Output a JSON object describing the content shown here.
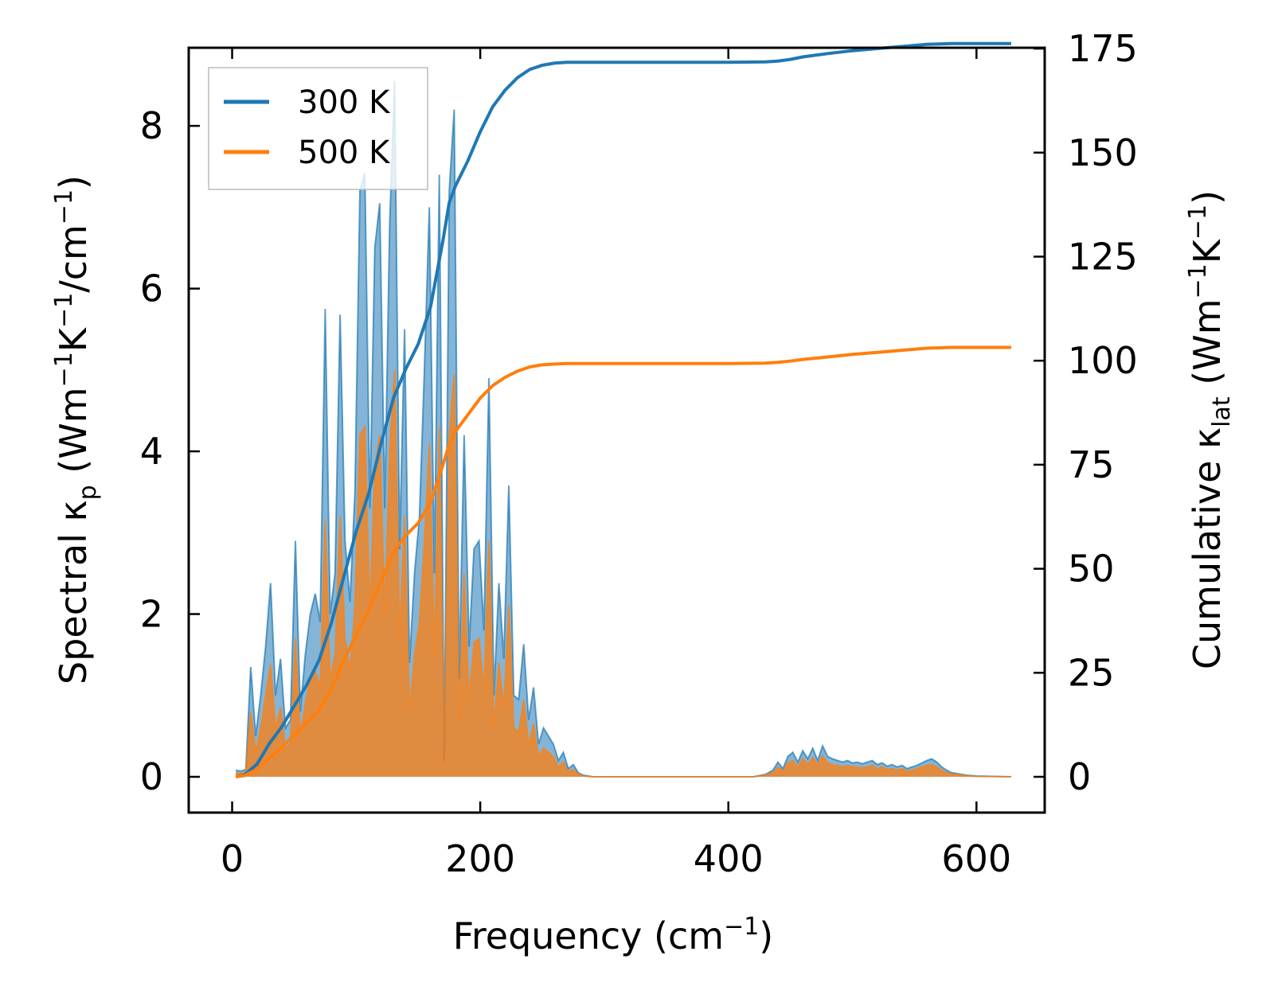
{
  "chart_data": {
    "type": "line",
    "title": "",
    "xlabel": "Frequency (cm",
    "xlabel_sup": "−1",
    "xlabel_end": ")",
    "ylabel_left_parts": [
      "Spectral κ",
      "p",
      " (Wm",
      "−1",
      "K",
      "−1",
      "/cm",
      "−1",
      ")"
    ],
    "ylabel_right_parts": [
      "Cumulative κ",
      "lat",
      " (Wm",
      "−1",
      "K",
      "−1",
      ")"
    ],
    "xlim": [
      -35,
      655
    ],
    "ylim_left": [
      -0.44,
      8.96
    ],
    "ylim_right": [
      -8.6,
      175.2
    ],
    "x_ticks": [
      0,
      200,
      400,
      600
    ],
    "y_left_ticks": [
      0,
      2,
      4,
      6,
      8
    ],
    "y_right_ticks": [
      0,
      25,
      50,
      75,
      100,
      125,
      150,
      175
    ],
    "legend": {
      "position": "top-left",
      "entries": [
        "300 K",
        "500 K"
      ]
    },
    "colors": {
      "series_300": "#1f77b4",
      "series_500": "#ff7f0e",
      "fill_overlap": "#c59a6a"
    },
    "series": [
      {
        "name": "300 K",
        "spectral": {
          "x": [
            3,
            7,
            11,
            15,
            19,
            23,
            27,
            31,
            35,
            39,
            43,
            47,
            51,
            55,
            59,
            63,
            67,
            71,
            75,
            79,
            83,
            87,
            91,
            95,
            99,
            103,
            107,
            111,
            115,
            119,
            123,
            127,
            131,
            135,
            139,
            143,
            147,
            151,
            155,
            159,
            163,
            167,
            171,
            175,
            179,
            183,
            187,
            191,
            195,
            199,
            203,
            207,
            211,
            215,
            219,
            223,
            227,
            231,
            235,
            239,
            243,
            247,
            251,
            255,
            259,
            263,
            267,
            271,
            275,
            279,
            283,
            287,
            291,
            300,
            350,
            400,
            420,
            430,
            436,
            440,
            444,
            448,
            452,
            456,
            460,
            464,
            468,
            472,
            476,
            480,
            484,
            488,
            492,
            496,
            500,
            504,
            508,
            512,
            516,
            520,
            524,
            528,
            532,
            536,
            540,
            544,
            548,
            552,
            556,
            560,
            564,
            568,
            572,
            576,
            580,
            584,
            588,
            592,
            600,
            628
          ],
          "values": [
            0.08,
            0.07,
            0.09,
            1.35,
            0.5,
            1.0,
            1.6,
            2.38,
            1.0,
            1.45,
            0.6,
            0.7,
            2.9,
            0.8,
            1.5,
            2.0,
            2.25,
            1.9,
            5.75,
            2.0,
            2.5,
            5.68,
            2.9,
            2.15,
            3.5,
            7.2,
            7.42,
            3.3,
            6.5,
            7.05,
            3.3,
            6.8,
            8.55,
            2.8,
            5.5,
            1.4,
            2.5,
            3.2,
            5.0,
            7.0,
            2.5,
            7.4,
            0.2,
            7.2,
            8.2,
            1.2,
            4.2,
            1.6,
            2.8,
            2.9,
            1.8,
            4.9,
            1.0,
            2.38,
            1.45,
            3.58,
            1.0,
            0.95,
            1.63,
            0.7,
            1.1,
            0.4,
            0.6,
            0.5,
            0.4,
            0.2,
            0.3,
            0.1,
            0.15,
            0.05,
            0.02,
            0.01,
            0,
            0,
            0,
            0,
            0,
            0.03,
            0.08,
            0.18,
            0.1,
            0.25,
            0.3,
            0.18,
            0.32,
            0.22,
            0.35,
            0.2,
            0.38,
            0.25,
            0.22,
            0.2,
            0.18,
            0.2,
            0.17,
            0.18,
            0.16,
            0.18,
            0.2,
            0.15,
            0.17,
            0.13,
            0.15,
            0.12,
            0.14,
            0.1,
            0.12,
            0.14,
            0.17,
            0.2,
            0.22,
            0.18,
            0.12,
            0.08,
            0.05,
            0.04,
            0.03,
            0.02,
            0.01,
            0
          ]
        },
        "cumulative": {
          "x": [
            3,
            10,
            20,
            30,
            40,
            50,
            60,
            70,
            80,
            90,
            100,
            110,
            120,
            130,
            140,
            150,
            160,
            170,
            175,
            180,
            190,
            200,
            210,
            220,
            230,
            240,
            250,
            260,
            270,
            280,
            300,
            350,
            400,
            430,
            440,
            450,
            460,
            480,
            500,
            520,
            540,
            560,
            580,
            600,
            628
          ],
          "values": [
            0,
            0.5,
            3,
            8,
            12,
            17,
            22,
            28,
            37,
            48,
            59,
            68,
            80,
            91,
            98,
            104,
            113,
            129,
            138,
            142,
            148,
            155,
            161,
            165,
            168,
            170,
            171,
            171.5,
            171.7,
            171.7,
            171.7,
            171.7,
            171.7,
            171.8,
            172,
            172.4,
            173,
            173.8,
            174.5,
            175,
            175.5,
            176,
            176.2,
            176.2,
            176.2
          ]
        }
      },
      {
        "name": "500 K",
        "spectral": {
          "x": [
            3,
            7,
            11,
            15,
            19,
            23,
            27,
            31,
            35,
            39,
            43,
            47,
            51,
            55,
            59,
            63,
            67,
            71,
            75,
            79,
            83,
            87,
            91,
            95,
            99,
            103,
            107,
            111,
            115,
            119,
            123,
            127,
            131,
            135,
            139,
            143,
            147,
            151,
            155,
            159,
            163,
            167,
            171,
            175,
            179,
            183,
            187,
            191,
            195,
            199,
            203,
            207,
            211,
            215,
            219,
            223,
            227,
            231,
            235,
            239,
            243,
            247,
            251,
            255,
            259,
            263,
            267,
            271,
            275,
            279,
            283,
            287,
            291,
            300,
            350,
            400,
            420,
            430,
            436,
            440,
            444,
            448,
            452,
            456,
            460,
            464,
            468,
            472,
            476,
            480,
            484,
            488,
            492,
            496,
            500,
            504,
            508,
            512,
            516,
            520,
            524,
            528,
            532,
            536,
            540,
            544,
            548,
            552,
            556,
            560,
            564,
            568,
            572,
            576,
            580,
            584,
            588,
            592,
            600,
            628
          ],
          "values": [
            0.05,
            0.04,
            0.05,
            0.8,
            0.3,
            0.6,
            1.0,
            1.38,
            0.6,
            0.85,
            0.35,
            0.4,
            1.7,
            0.5,
            0.9,
            1.2,
            1.3,
            1.1,
            3.15,
            1.2,
            1.5,
            3.2,
            1.7,
            1.3,
            2.1,
            4.2,
            4.3,
            2.0,
            3.8,
            4.2,
            2.0,
            4.0,
            5.0,
            1.7,
            3.2,
            0.8,
            1.5,
            1.9,
            2.9,
            4.1,
            1.5,
            4.3,
            0.15,
            4.2,
            4.95,
            0.7,
            2.5,
            0.95,
            1.65,
            1.7,
            1.05,
            2.9,
            0.6,
            1.4,
            0.85,
            2.1,
            0.6,
            0.55,
            0.95,
            0.4,
            0.65,
            0.25,
            0.35,
            0.3,
            0.25,
            0.12,
            0.18,
            0.06,
            0.09,
            0.03,
            0.01,
            0.005,
            0,
            0,
            0,
            0,
            0,
            0.02,
            0.05,
            0.12,
            0.07,
            0.17,
            0.2,
            0.12,
            0.22,
            0.15,
            0.24,
            0.14,
            0.26,
            0.17,
            0.15,
            0.14,
            0.12,
            0.14,
            0.12,
            0.12,
            0.11,
            0.12,
            0.14,
            0.1,
            0.12,
            0.09,
            0.1,
            0.08,
            0.1,
            0.07,
            0.08,
            0.1,
            0.12,
            0.14,
            0.15,
            0.12,
            0.08,
            0.05,
            0.03,
            0.03,
            0.02,
            0.01,
            0.005,
            0
          ]
        },
        "cumulative": {
          "x": [
            3,
            10,
            20,
            30,
            40,
            50,
            60,
            70,
            80,
            90,
            100,
            110,
            120,
            130,
            140,
            150,
            160,
            170,
            175,
            180,
            190,
            200,
            210,
            220,
            230,
            240,
            250,
            260,
            270,
            280,
            300,
            350,
            400,
            430,
            440,
            450,
            460,
            480,
            500,
            520,
            540,
            560,
            580,
            600,
            628
          ],
          "values": [
            0,
            0.3,
            1.8,
            4.5,
            7,
            10,
            13,
            16,
            21,
            28,
            34,
            40,
            47,
            54,
            58,
            61,
            66,
            75,
            80,
            83,
            87,
            91,
            94,
            96,
            97.5,
            98.5,
            99,
            99.2,
            99.3,
            99.3,
            99.3,
            99.3,
            99.3,
            99.4,
            99.6,
            99.9,
            100.3,
            100.9,
            101.5,
            102,
            102.5,
            103,
            103.2,
            103.2,
            103.2
          ]
        }
      }
    ]
  }
}
